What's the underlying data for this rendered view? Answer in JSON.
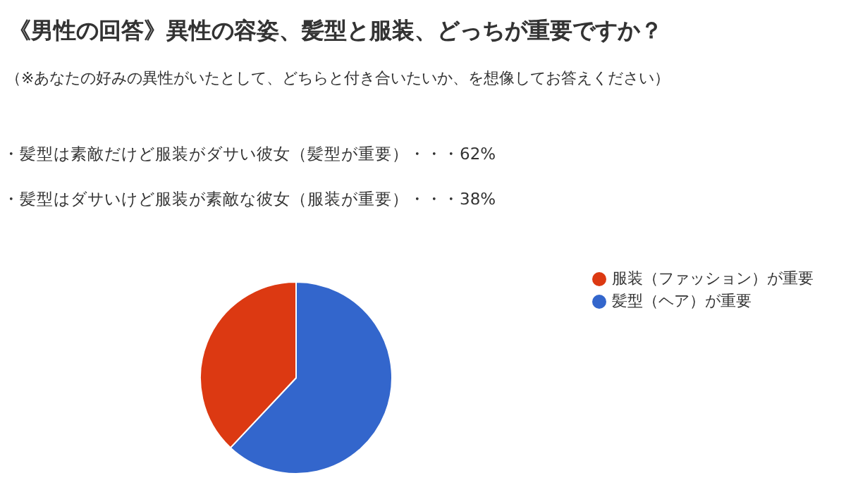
{
  "chart_data": {
    "type": "pie",
    "title": "《男性の回答》異性の容姿、髪型と服装、どっちが重要ですか？",
    "subtitle": "（※あなたの好みの異性がいたとして、どちらと付き合いたいか、を想像してお答えください）",
    "annotations": [
      "・髪型は素敵だけど服装がダサい彼女（髪型が重要）・・・62%",
      "・髪型はダサいけど服装が素敵な彼女（服装が重要）・・・38%"
    ],
    "categories": [
      "髪型（ヘア）が重要",
      "服装（ファッション）が重要"
    ],
    "values": [
      62,
      38
    ],
    "colors": [
      "#3366cc",
      "#dc3912"
    ],
    "legend": "top right"
  }
}
